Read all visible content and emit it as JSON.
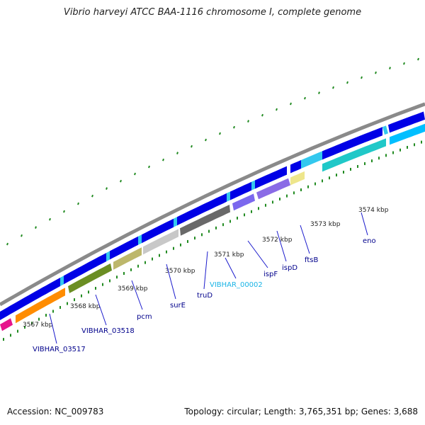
{
  "title": "Vibrio harveyi ATCC BAA-1116 chromosome I, complete genome",
  "footer": {
    "accession": "Accession: NC_009783",
    "topology": "Topology: circular; Length: 3,765,351 bp; Genes: 3,688"
  },
  "colors": {
    "backbone": "#8a8a8a",
    "tick": "#228b22",
    "scale_label": "#222222",
    "gene_label": "#00008b",
    "gene_label_light": "#1ab4e6",
    "leader_line": "#1a1acc"
  },
  "scale_labels": [
    "3567 kbp",
    "3568 kbp",
    "3569 kbp",
    "3570 kbp",
    "3571 kbp",
    "3572 kbp",
    "3573 kbp",
    "3574 kbp"
  ],
  "gene_labels": [
    {
      "text": "VIBHAR_03517",
      "color": "gene_label"
    },
    {
      "text": "VIBHAR_03518",
      "color": "gene_label"
    },
    {
      "text": "pcm",
      "color": "gene_label"
    },
    {
      "text": "surE",
      "color": "gene_label"
    },
    {
      "text": "truD",
      "color": "gene_label"
    },
    {
      "text": "VIBHAR_00002",
      "color": "gene_label_light"
    },
    {
      "text": "ispF",
      "color": "gene_label"
    },
    {
      "text": "ispD",
      "color": "gene_label"
    },
    {
      "text": "ftsB",
      "color": "gene_label"
    },
    {
      "text": "eno",
      "color": "gene_label"
    }
  ],
  "tracks": {
    "strand_blue": "#0000e6",
    "strand_cyan": "#33c8ee",
    "features": [
      {
        "color": "#e6158c"
      },
      {
        "color": "#ff8c00"
      },
      {
        "color": "#6b8e23"
      },
      {
        "color": "#bdb76b"
      },
      {
        "color": "#c8c8c8"
      },
      {
        "color": "#696969"
      },
      {
        "color": "#7b68ee"
      },
      {
        "color": "#8a6be6"
      },
      {
        "color": "#eee68c"
      },
      {
        "color": "#20c8c8"
      },
      {
        "color": "#00bfff"
      }
    ]
  }
}
